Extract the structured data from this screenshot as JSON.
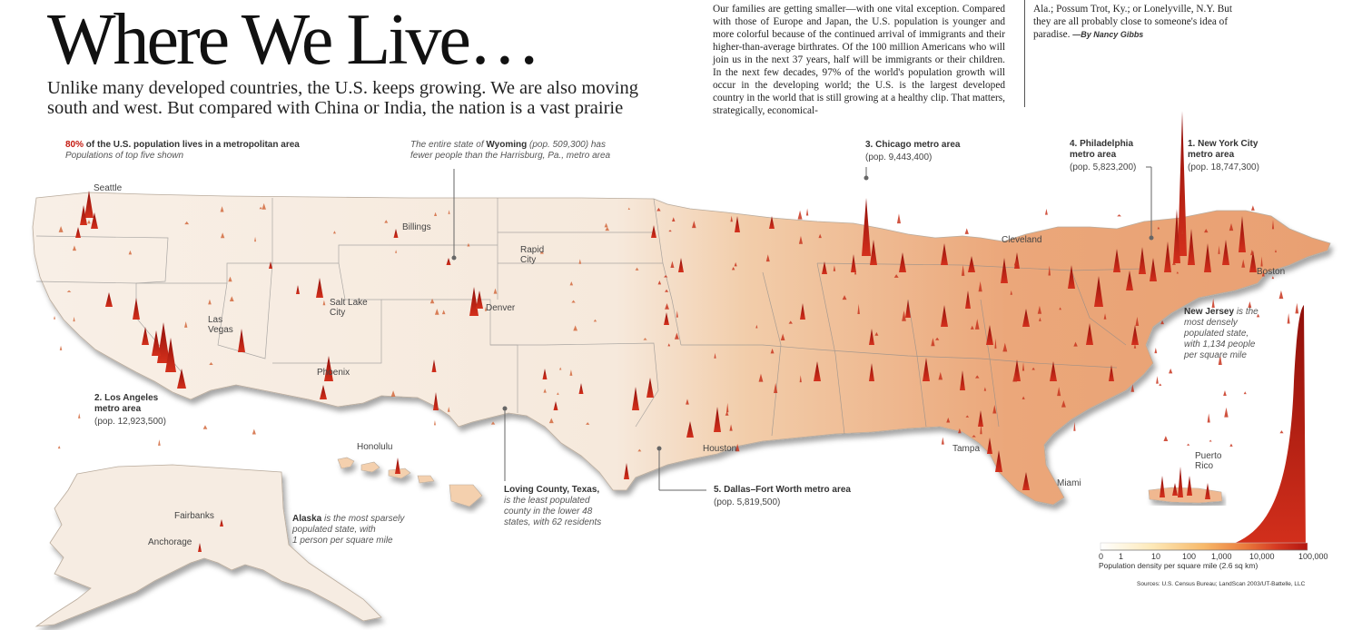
{
  "header": {
    "title": "Where We Live…",
    "subtitle": "Unlike many developed countries, the U.S. keeps growing. We are also moving south and west. But compared with China or India, the nation is a vast prairie"
  },
  "essay": {
    "column1": "Our families are getting smaller—with one vital exception. Compared with those of Europe and Japan, the U.S. population is younger and more colorful because of the continued arrival of immigrants and their higher-than-average birthrates. Of the 100 million Americans who will join us in the next 37 years, half will be immigrants or their children. In the next few decades, 97% of the world's population growth will occur in the developing world; the U.S. is the largest developed country in the world that is still growing at a healthy clip. That matters, strategically, economical-",
    "column2": "Ala.; Possum Trot, Ky.; or Lonelyville, N.Y. But they are all probably close to someone's idea of paradise.",
    "byline": "—By Nancy Gibbs"
  },
  "metro_note": {
    "highlight": "80%",
    "text": " of the U.S. population lives in a metropolitan area",
    "subtext": "Populations of top five shown"
  },
  "wyoming_note": {
    "line1_pre": "The entire state of ",
    "state": "Wyoming",
    "line1_post": " (pop. 509,300) has",
    "line2": "fewer people than the Harrisburg, Pa., metro area"
  },
  "metros": [
    {
      "rank_name": "1. New York City",
      "rank_name_2": "metro area",
      "pop": "(pop. 18,747,300)"
    },
    {
      "rank_name": "2. Los Angeles",
      "rank_name_2": "metro area",
      "pop": "(pop. 12,923,500)"
    },
    {
      "rank_name": "3. Chicago metro area",
      "pop": "(pop. 9,443,400)"
    },
    {
      "rank_name": "4. Philadelphia",
      "rank_name_2": "metro area",
      "pop": "(pop. 5,823,200)"
    },
    {
      "rank_name": "5. Dallas–Fort Worth metro area",
      "pop": "(pop. 5,819,500)"
    }
  ],
  "new_jersey_note": {
    "state": "New Jersey",
    "line1": " is the",
    "line2": "most densely",
    "line3": "populated state,",
    "line4": "with 1,134 people",
    "line5": "per square mile"
  },
  "loving_note": {
    "title": "Loving County, Texas,",
    "line2": "is the least populated",
    "line3": "county in the lower 48",
    "line4": "states, with 62 residents"
  },
  "alaska_note": {
    "state": "Alaska",
    "line1": " is the most sparsely",
    "line2": "populated state, with",
    "line3": "1 person per square mile"
  },
  "cities": {
    "seattle": "Seattle",
    "billings": "Billings",
    "rapid_city_1": "Rapid",
    "rapid_city_2": "City",
    "salt_lake_1": "Salt Lake",
    "salt_lake_2": "City",
    "denver": "Denver",
    "las_vegas_1": "Las",
    "las_vegas_2": "Vegas",
    "phoenix": "Phoenix",
    "cleveland": "Cleveland",
    "boston": "Boston",
    "houston": "Houston",
    "tampa": "Tampa",
    "miami": "Miami",
    "honolulu": "Honolulu",
    "fairbanks": "Fairbanks",
    "anchorage": "Anchorage",
    "puerto_rico_1": "Puerto",
    "puerto_rico_2": "Rico"
  },
  "legend": {
    "ticks": [
      "0",
      "1",
      "10",
      "100",
      "1,000",
      "10,000",
      "100,000"
    ],
    "caption": "Population density per square mile (2.6 sq km)",
    "colors": [
      "#ffffff",
      "#fde9b8",
      "#f7b96a",
      "#ea7a3c",
      "#d63a22",
      "#b3150f"
    ]
  },
  "source": "Sources: U.S. Census Bureau; LandScan 2003/UT-Battelle, LLC",
  "colors": {
    "accent_red": "#c41a10",
    "land": "#f7ece0",
    "spike": "#c41a10"
  }
}
